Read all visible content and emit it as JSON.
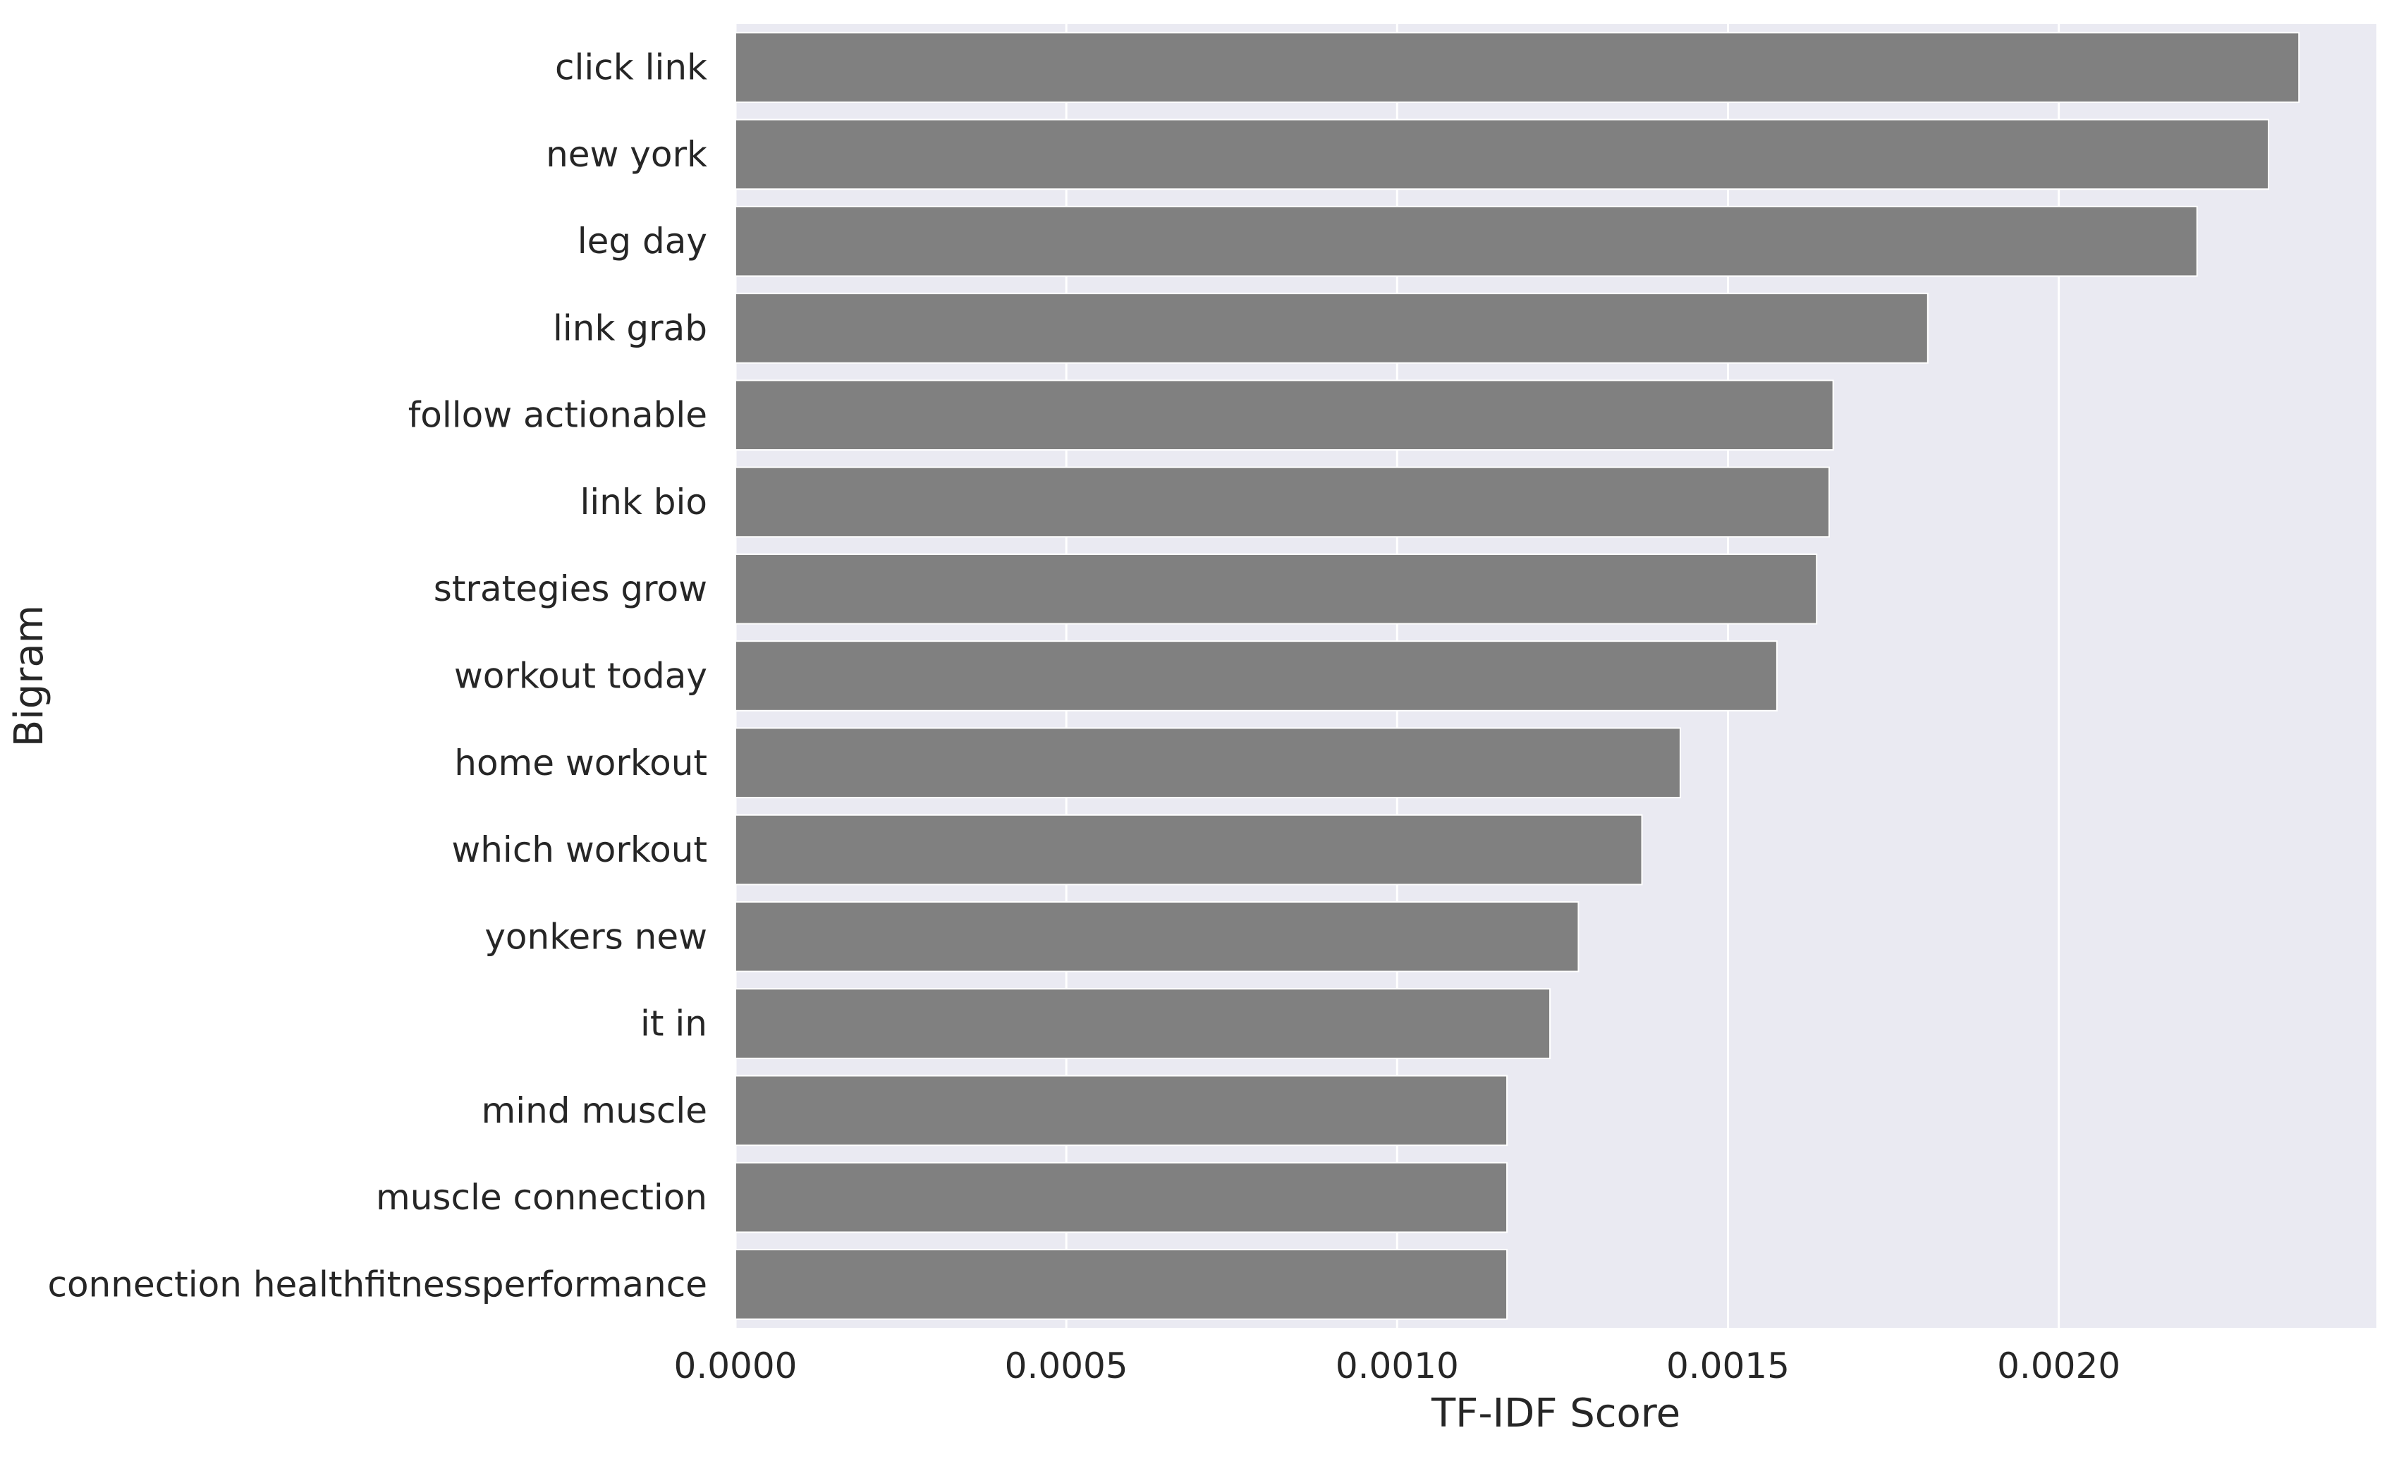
{
  "chart_data": {
    "type": "bar",
    "orientation": "horizontal",
    "title": "",
    "xlabel": "TF-IDF Score",
    "ylabel": "Bigram",
    "xlim": [
      0,
      0.00248
    ],
    "xticks": [
      0.0,
      0.0005,
      0.001,
      0.0015,
      0.002
    ],
    "xtick_labels": [
      "0.0000",
      "0.0005",
      "0.0010",
      "0.0015",
      "0.0020"
    ],
    "grid": true,
    "background": "#eaeaf2",
    "bar_color": "#808080",
    "categories": [
      "click link",
      "new york",
      "leg day",
      "link grab",
      "follow actionable",
      "link bio",
      "strategies grow",
      "workout today",
      "home workout",
      "which workout",
      "yonkers new",
      "it in",
      "mind muscle",
      "muscle connection",
      "connection healthfitnessperformance"
    ],
    "values": [
      0.002363,
      0.002317,
      0.002209,
      0.001802,
      0.001659,
      0.001653,
      0.001634,
      0.001574,
      0.001428,
      0.00137,
      0.001274,
      0.001231,
      0.001166,
      0.001166,
      0.001166
    ]
  }
}
